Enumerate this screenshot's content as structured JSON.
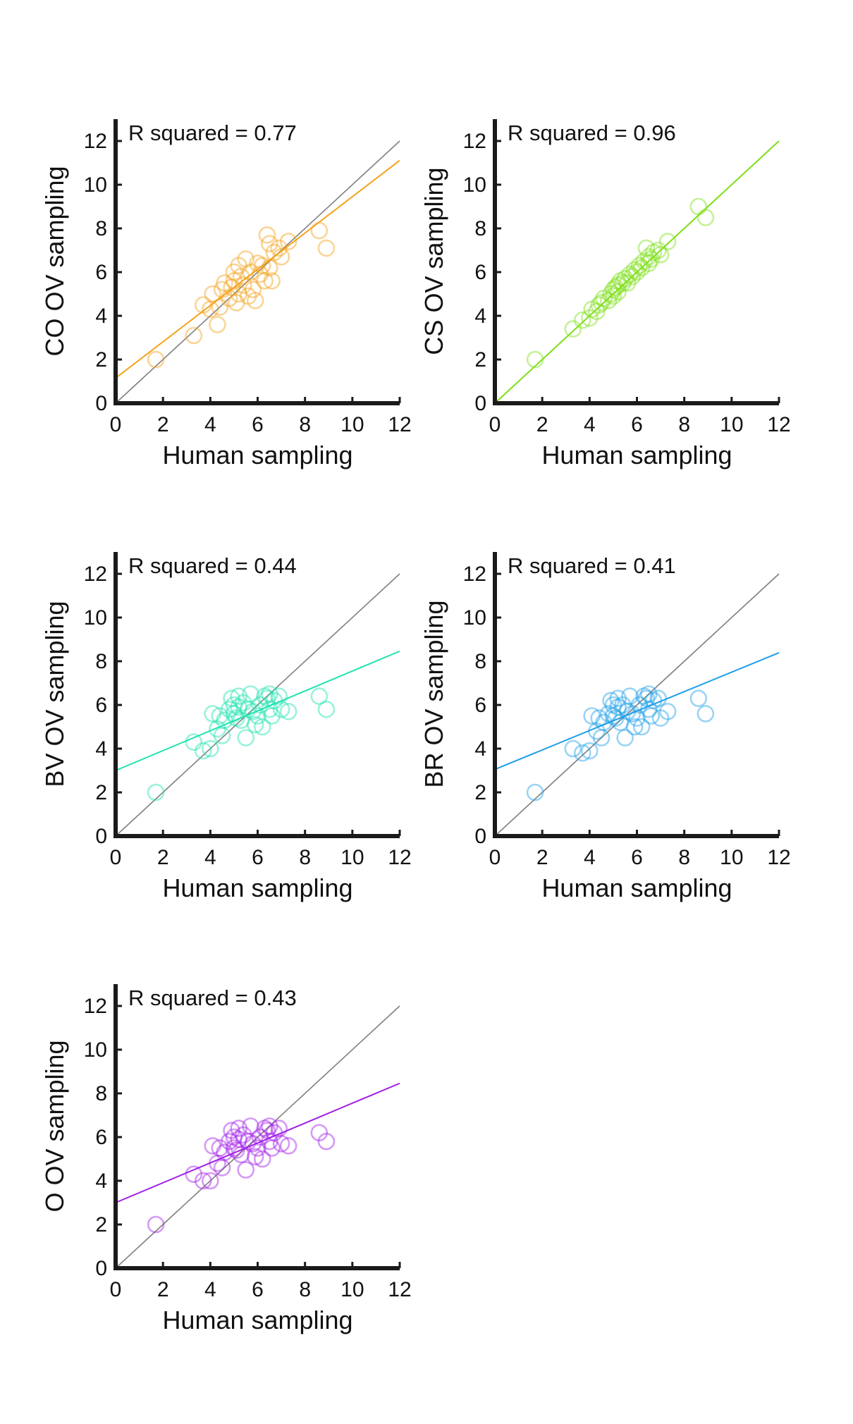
{
  "colors": {
    "axis": "#1a1a1a",
    "identity_line": "#7f7f7f",
    "CO": "#f5a21b",
    "CS": "#7fe01a",
    "BV": "#1fe3b0",
    "BR": "#1e9fe8",
    "O": "#a21ee8"
  },
  "chart_data": [
    {
      "type": "scatter",
      "series_key": "CO",
      "annotation": "R squared = 0.77",
      "xlabel": "Human sampling",
      "ylabel": "CO OV sampling",
      "xlim": [
        0,
        12
      ],
      "ylim": [
        0,
        13
      ],
      "xticks": [
        0,
        2,
        4,
        6,
        8,
        10,
        12
      ],
      "yticks": [
        0,
        2,
        4,
        6,
        8,
        10,
        12
      ],
      "identity_line": true,
      "fit": {
        "intercept": 1.15,
        "slope": 0.83
      },
      "points": [
        [
          1.7,
          2.0
        ],
        [
          3.3,
          3.1
        ],
        [
          3.7,
          4.5
        ],
        [
          4.0,
          4.3
        ],
        [
          4.1,
          5.0
        ],
        [
          4.3,
          3.6
        ],
        [
          4.4,
          4.4
        ],
        [
          4.5,
          5.2
        ],
        [
          4.6,
          5.5
        ],
        [
          4.8,
          4.8
        ],
        [
          4.9,
          5.3
        ],
        [
          5.0,
          6.0
        ],
        [
          5.0,
          5.6
        ],
        [
          5.1,
          4.6
        ],
        [
          5.2,
          6.3
        ],
        [
          5.2,
          5.0
        ],
        [
          5.3,
          5.8
        ],
        [
          5.4,
          5.4
        ],
        [
          5.5,
          6.6
        ],
        [
          5.6,
          4.9
        ],
        [
          5.7,
          6.0
        ],
        [
          5.8,
          5.2
        ],
        [
          5.9,
          4.7
        ],
        [
          6.0,
          6.4
        ],
        [
          6.1,
          5.9
        ],
        [
          6.2,
          6.3
        ],
        [
          6.3,
          5.6
        ],
        [
          6.4,
          7.7
        ],
        [
          6.5,
          7.3
        ],
        [
          6.5,
          6.2
        ],
        [
          6.6,
          5.6
        ],
        [
          6.7,
          6.9
        ],
        [
          6.9,
          7.1
        ],
        [
          7.0,
          6.7
        ],
        [
          7.3,
          7.4
        ],
        [
          8.6,
          7.9
        ],
        [
          8.9,
          7.1
        ]
      ]
    },
    {
      "type": "scatter",
      "series_key": "CS",
      "annotation": "R squared = 0.96",
      "xlabel": "Human sampling",
      "ylabel": "CS OV sampling",
      "xlim": [
        0,
        12
      ],
      "ylim": [
        0,
        13
      ],
      "xticks": [
        0,
        2,
        4,
        6,
        8,
        10,
        12
      ],
      "yticks": [
        0,
        2,
        4,
        6,
        8,
        10,
        12
      ],
      "identity_line": true,
      "fit": {
        "intercept": 0.0,
        "slope": 1.0
      },
      "points": [
        [
          1.7,
          2.0
        ],
        [
          3.3,
          3.4
        ],
        [
          3.7,
          3.8
        ],
        [
          4.0,
          3.9
        ],
        [
          4.1,
          4.3
        ],
        [
          4.3,
          4.2
        ],
        [
          4.4,
          4.5
        ],
        [
          4.5,
          4.6
        ],
        [
          4.6,
          4.8
        ],
        [
          4.8,
          4.7
        ],
        [
          4.9,
          5.0
        ],
        [
          5.0,
          5.2
        ],
        [
          5.0,
          4.9
        ],
        [
          5.1,
          5.3
        ],
        [
          5.2,
          5.4
        ],
        [
          5.2,
          5.1
        ],
        [
          5.3,
          5.6
        ],
        [
          5.4,
          5.5
        ],
        [
          5.5,
          5.7
        ],
        [
          5.6,
          5.5
        ],
        [
          5.7,
          5.9
        ],
        [
          5.8,
          5.8
        ],
        [
          5.9,
          6.1
        ],
        [
          6.0,
          6.0
        ],
        [
          6.1,
          6.3
        ],
        [
          6.2,
          6.2
        ],
        [
          6.3,
          6.5
        ],
        [
          6.4,
          7.1
        ],
        [
          6.5,
          6.7
        ],
        [
          6.5,
          6.4
        ],
        [
          6.6,
          6.6
        ],
        [
          6.7,
          6.9
        ],
        [
          6.9,
          7.0
        ],
        [
          7.0,
          6.8
        ],
        [
          7.3,
          7.4
        ],
        [
          8.6,
          9.0
        ],
        [
          8.9,
          8.5
        ]
      ]
    },
    {
      "type": "scatter",
      "series_key": "BV",
      "annotation": "R squared = 0.44",
      "xlabel": "Human sampling",
      "ylabel": "BV OV sampling",
      "xlim": [
        0,
        12
      ],
      "ylim": [
        0,
        13
      ],
      "xticks": [
        0,
        2,
        4,
        6,
        8,
        10,
        12
      ],
      "yticks": [
        0,
        2,
        4,
        6,
        8,
        10,
        12
      ],
      "identity_line": true,
      "fit": {
        "intercept": 3.0,
        "slope": 0.455
      },
      "points": [
        [
          1.7,
          2.0
        ],
        [
          3.3,
          4.3
        ],
        [
          3.7,
          3.9
        ],
        [
          4.0,
          4.0
        ],
        [
          4.1,
          5.6
        ],
        [
          4.3,
          4.9
        ],
        [
          4.4,
          5.5
        ],
        [
          4.5,
          4.6
        ],
        [
          4.6,
          5.3
        ],
        [
          4.8,
          5.8
        ],
        [
          4.9,
          6.3
        ],
        [
          5.0,
          5.6
        ],
        [
          5.0,
          6.0
        ],
        [
          5.1,
          5.4
        ],
        [
          5.2,
          6.4
        ],
        [
          5.2,
          5.9
        ],
        [
          5.3,
          5.3
        ],
        [
          5.4,
          6.1
        ],
        [
          5.5,
          4.5
        ],
        [
          5.6,
          5.8
        ],
        [
          5.7,
          6.5
        ],
        [
          5.8,
          5.7
        ],
        [
          5.9,
          5.1
        ],
        [
          6.0,
          5.5
        ],
        [
          6.1,
          6.0
        ],
        [
          6.2,
          5.0
        ],
        [
          6.3,
          6.4
        ],
        [
          6.4,
          6.3
        ],
        [
          6.5,
          5.8
        ],
        [
          6.5,
          6.5
        ],
        [
          6.6,
          5.5
        ],
        [
          6.7,
          6.2
        ],
        [
          6.9,
          6.4
        ],
        [
          7.0,
          5.8
        ],
        [
          7.3,
          5.7
        ],
        [
          8.6,
          6.4
        ],
        [
          8.9,
          5.8
        ]
      ]
    },
    {
      "type": "scatter",
      "series_key": "BR",
      "annotation": "R squared = 0.41",
      "xlabel": "Human sampling",
      "ylabel": "BR OV sampling",
      "xlim": [
        0,
        12
      ],
      "ylim": [
        0,
        13
      ],
      "xticks": [
        0,
        2,
        4,
        6,
        8,
        10,
        12
      ],
      "yticks": [
        0,
        2,
        4,
        6,
        8,
        10,
        12
      ],
      "identity_line": true,
      "fit": {
        "intercept": 3.05,
        "slope": 0.445
      },
      "points": [
        [
          1.7,
          2.0
        ],
        [
          3.3,
          4.0
        ],
        [
          3.7,
          3.8
        ],
        [
          4.0,
          3.9
        ],
        [
          4.1,
          5.5
        ],
        [
          4.3,
          4.8
        ],
        [
          4.4,
          5.4
        ],
        [
          4.5,
          4.5
        ],
        [
          4.6,
          5.2
        ],
        [
          4.8,
          5.6
        ],
        [
          4.9,
          6.2
        ],
        [
          5.0,
          5.5
        ],
        [
          5.0,
          6.0
        ],
        [
          5.1,
          5.4
        ],
        [
          5.2,
          6.3
        ],
        [
          5.2,
          5.9
        ],
        [
          5.3,
          5.2
        ],
        [
          5.4,
          6.0
        ],
        [
          5.5,
          4.5
        ],
        [
          5.6,
          5.7
        ],
        [
          5.7,
          6.4
        ],
        [
          5.8,
          5.6
        ],
        [
          5.9,
          5.0
        ],
        [
          6.0,
          5.4
        ],
        [
          6.1,
          6.0
        ],
        [
          6.2,
          5.0
        ],
        [
          6.3,
          6.4
        ],
        [
          6.4,
          6.3
        ],
        [
          6.5,
          5.8
        ],
        [
          6.5,
          6.5
        ],
        [
          6.6,
          5.5
        ],
        [
          6.7,
          6.2
        ],
        [
          6.9,
          6.3
        ],
        [
          7.0,
          5.4
        ],
        [
          7.3,
          5.7
        ],
        [
          8.6,
          6.3
        ],
        [
          8.9,
          5.6
        ]
      ]
    },
    {
      "type": "scatter",
      "series_key": "O",
      "annotation": "R squared = 0.43",
      "xlabel": "Human sampling",
      "ylabel": "O OV sampling",
      "xlim": [
        0,
        12
      ],
      "ylim": [
        0,
        13
      ],
      "xticks": [
        0,
        2,
        4,
        6,
        8,
        10,
        12
      ],
      "yticks": [
        0,
        2,
        4,
        6,
        8,
        10,
        12
      ],
      "identity_line": true,
      "fit": {
        "intercept": 3.0,
        "slope": 0.455
      },
      "points": [
        [
          1.7,
          2.0
        ],
        [
          3.3,
          4.3
        ],
        [
          3.7,
          4.0
        ],
        [
          4.0,
          4.0
        ],
        [
          4.1,
          5.6
        ],
        [
          4.3,
          4.8
        ],
        [
          4.4,
          5.5
        ],
        [
          4.5,
          4.6
        ],
        [
          4.6,
          5.3
        ],
        [
          4.8,
          5.8
        ],
        [
          4.9,
          6.3
        ],
        [
          5.0,
          5.5
        ],
        [
          5.0,
          6.0
        ],
        [
          5.1,
          5.4
        ],
        [
          5.2,
          6.4
        ],
        [
          5.2,
          5.9
        ],
        [
          5.3,
          5.2
        ],
        [
          5.4,
          6.1
        ],
        [
          5.5,
          4.5
        ],
        [
          5.6,
          5.8
        ],
        [
          5.7,
          6.5
        ],
        [
          5.8,
          5.7
        ],
        [
          5.9,
          5.1
        ],
        [
          6.0,
          5.5
        ],
        [
          6.1,
          6.0
        ],
        [
          6.2,
          5.0
        ],
        [
          6.3,
          6.4
        ],
        [
          6.4,
          6.3
        ],
        [
          6.5,
          5.8
        ],
        [
          6.5,
          6.5
        ],
        [
          6.6,
          5.5
        ],
        [
          6.7,
          6.2
        ],
        [
          6.9,
          6.4
        ],
        [
          7.0,
          5.7
        ],
        [
          7.3,
          5.6
        ],
        [
          8.6,
          6.2
        ],
        [
          8.9,
          5.8
        ]
      ]
    }
  ]
}
